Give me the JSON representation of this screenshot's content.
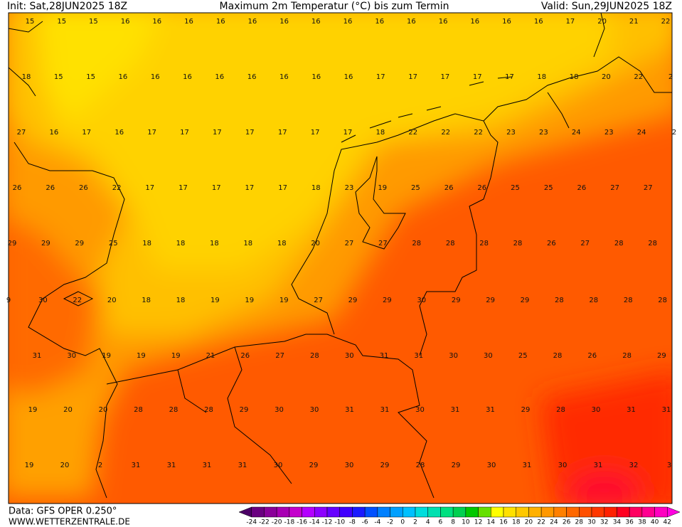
{
  "header": {
    "init": "Init: Sat,28JUN2025 18Z",
    "title": "Maximum 2m Temperatur (°C) bis zum Termin",
    "valid": "Valid: Sun,29JUN2025 18Z"
  },
  "footer": {
    "data": "Data: GFS OPER 0.250°",
    "site": "WWW.WETTERZENTRALE.DE"
  },
  "map": {
    "labels": [
      [
        15,
        15,
        15,
        16,
        16,
        16,
        16,
        16,
        16,
        16,
        16,
        16,
        16,
        16,
        16,
        16,
        16,
        17,
        20,
        21,
        22
      ],
      [
        18,
        15,
        15,
        16,
        16,
        16,
        16,
        16,
        16,
        16,
        16,
        17,
        17,
        17,
        17,
        17,
        18,
        18,
        20,
        22,
        2
      ],
      [
        27,
        16,
        17,
        16,
        17,
        17,
        17,
        17,
        17,
        17,
        17,
        18,
        22,
        22,
        22,
        23,
        23,
        24,
        23,
        24,
        2
      ],
      [
        26,
        26,
        26,
        22,
        17,
        17,
        17,
        17,
        17,
        18,
        23,
        19,
        25,
        26,
        26,
        25,
        25,
        26,
        27,
        27
      ],
      [
        29,
        29,
        29,
        25,
        18,
        18,
        18,
        18,
        18,
        20,
        27,
        27,
        28,
        28,
        28,
        28,
        26,
        27,
        28,
        28
      ],
      [
        9,
        30,
        22,
        20,
        18,
        18,
        19,
        19,
        19,
        27,
        29,
        29,
        30,
        29,
        29,
        29,
        28,
        28,
        28,
        28
      ],
      [
        31,
        30,
        19,
        19,
        19,
        21,
        26,
        27,
        28,
        30,
        31,
        31,
        30,
        30,
        25,
        28,
        26,
        28,
        29
      ],
      [
        19,
        20,
        20,
        28,
        28,
        28,
        29,
        30,
        30,
        31,
        31,
        30,
        31,
        31,
        29,
        28,
        30,
        31,
        31
      ],
      [
        19,
        20,
        2,
        31,
        31,
        31,
        31,
        30,
        29,
        30,
        29,
        28,
        29,
        30,
        31,
        30,
        31,
        32,
        3
      ]
    ]
  },
  "colorbar": {
    "ticks": [
      -24,
      -22,
      -20,
      -18,
      -16,
      -14,
      -12,
      -10,
      -8,
      -6,
      -4,
      -2,
      0,
      2,
      4,
      6,
      8,
      10,
      12,
      14,
      16,
      18,
      20,
      22,
      24,
      26,
      28,
      30,
      32,
      34,
      36,
      38,
      40,
      42
    ],
    "colors": [
      "#4b0066",
      "#6a0080",
      "#8a0099",
      "#a800b3",
      "#c400cc",
      "#b300ff",
      "#8c00ff",
      "#6600ff",
      "#4000ff",
      "#1a1aff",
      "#0050ff",
      "#0080ff",
      "#00a0ff",
      "#00c0ff",
      "#00dddd",
      "#00e0b0",
      "#00e080",
      "#00d050",
      "#00c800",
      "#66e000",
      "#ffff00",
      "#ffe000",
      "#ffc800",
      "#ffb000",
      "#ff9800",
      "#ff8000",
      "#ff6800",
      "#ff5000",
      "#ff3800",
      "#ff2000",
      "#ff0020",
      "#ff0060",
      "#ff0090",
      "#ff00c0",
      "#ff00e0"
    ]
  }
}
